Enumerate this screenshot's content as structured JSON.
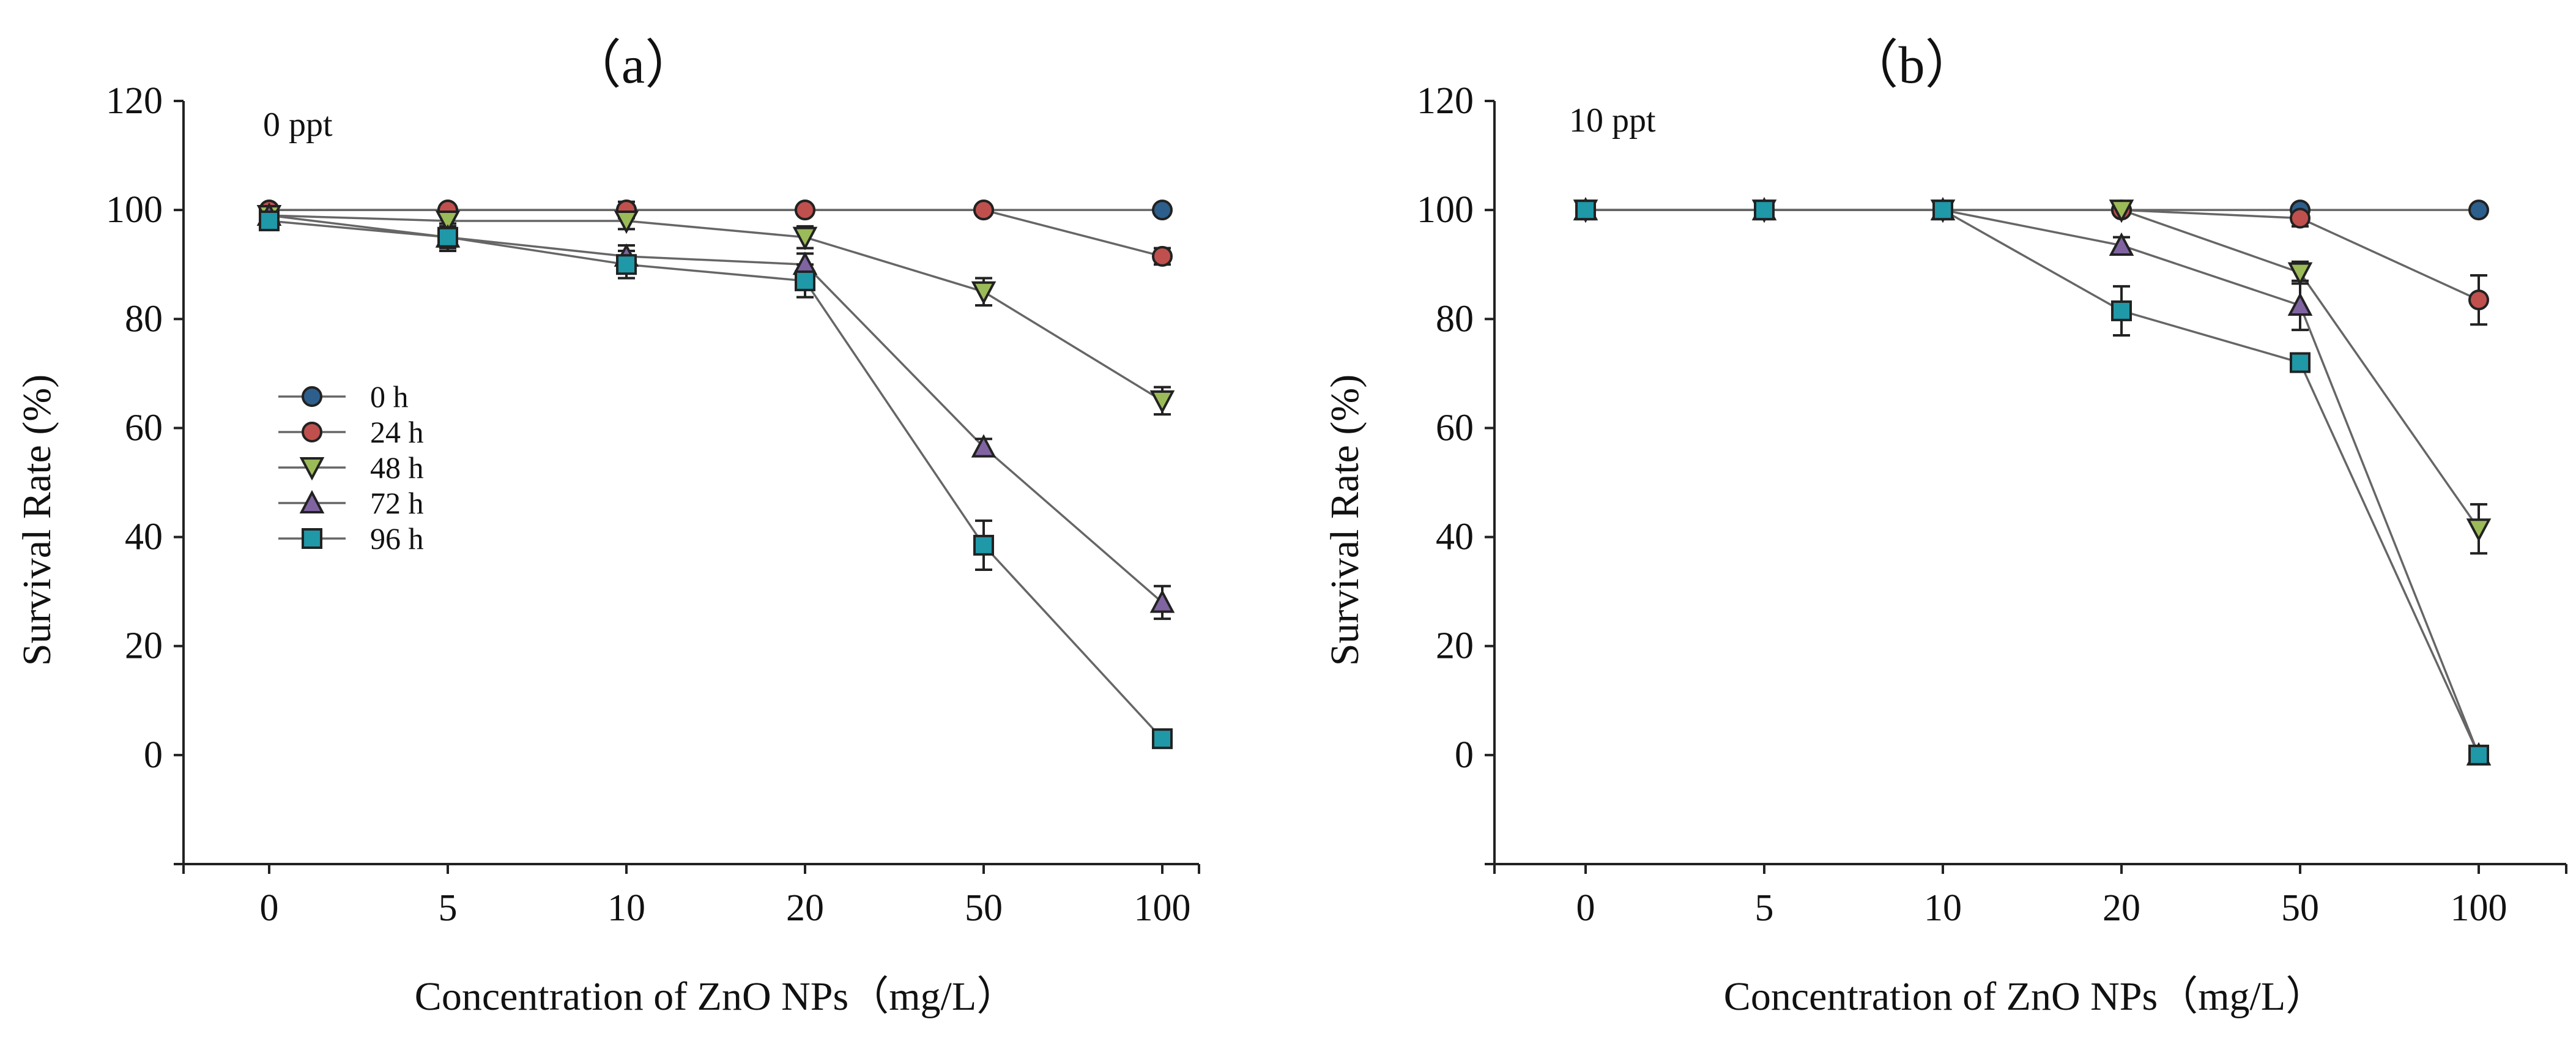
{
  "chart_data": [
    {
      "type": "line",
      "title": "（a）",
      "condition_label": "0 ppt",
      "xlabel": "Concentration of ZnO NPs（mg/L）",
      "ylabel": "Survival Rate (%)",
      "categories": [
        "0",
        "5",
        "10",
        "20",
        "50",
        "100"
      ],
      "ylim": [
        -20,
        120
      ],
      "yticks": [
        "0",
        "20",
        "40",
        "60",
        "80",
        "100",
        "120"
      ],
      "grid": false,
      "legend": "left-middle",
      "series": [
        {
          "name": "0 h",
          "marker": "circle",
          "color": "#2d5f8c",
          "values": [
            100,
            100,
            100,
            100,
            100,
            100
          ],
          "errors": [
            0,
            0,
            0,
            0,
            0,
            0
          ]
        },
        {
          "name": "24 h",
          "marker": "circle",
          "color": "#c0504d",
          "values": [
            100,
            100,
            100,
            100,
            100,
            91.5
          ],
          "errors": [
            0,
            0,
            1.5,
            0,
            0,
            1.5
          ]
        },
        {
          "name": "48 h",
          "marker": "triangle-down",
          "color": "#9bbb59",
          "values": [
            99,
            98,
            98,
            95,
            85,
            65
          ],
          "errors": [
            1,
            1,
            1.5,
            2,
            2.5,
            2.5
          ]
        },
        {
          "name": "72 h",
          "marker": "triangle-up",
          "color": "#8064a2",
          "values": [
            99,
            95,
            91.5,
            90,
            56.5,
            28
          ],
          "errors": [
            1,
            2,
            2,
            2,
            1.5,
            3
          ]
        },
        {
          "name": "96 h",
          "marker": "square",
          "color": "#1f98a8",
          "values": [
            98,
            95,
            90,
            87,
            38.5,
            3
          ],
          "errors": [
            1,
            2.5,
            2.5,
            3,
            4.5,
            1.5
          ]
        }
      ]
    },
    {
      "type": "line",
      "title": "（b）",
      "condition_label": "10 ppt",
      "xlabel": "Concentration of ZnO NPs（mg/L）",
      "ylabel": "Survival Rate (%)",
      "categories": [
        "0",
        "5",
        "10",
        "20",
        "50",
        "100"
      ],
      "ylim": [
        -20,
        120
      ],
      "yticks": [
        "0",
        "20",
        "40",
        "60",
        "80",
        "100",
        "120"
      ],
      "grid": false,
      "series": [
        {
          "name": "0 h",
          "marker": "circle",
          "color": "#2d5f8c",
          "values": [
            100,
            100,
            100,
            100,
            100,
            100
          ],
          "errors": [
            0,
            0,
            0,
            0,
            0,
            0
          ]
        },
        {
          "name": "24 h",
          "marker": "circle",
          "color": "#c0504d",
          "values": [
            100,
            100,
            100,
            100,
            98.5,
            83.5
          ],
          "errors": [
            0,
            0,
            0,
            0,
            1.5,
            4.5
          ]
        },
        {
          "name": "48 h",
          "marker": "triangle-down",
          "color": "#9bbb59",
          "values": [
            100,
            100,
            100,
            100,
            88.5,
            41.5
          ],
          "errors": [
            0,
            0,
            0,
            0,
            2,
            4.5
          ]
        },
        {
          "name": "72 h",
          "marker": "triangle-up",
          "color": "#8064a2",
          "values": [
            100,
            100,
            100,
            93.5,
            82.5,
            0
          ],
          "errors": [
            0,
            0,
            0,
            1.5,
            4.5,
            0
          ]
        },
        {
          "name": "96 h",
          "marker": "square",
          "color": "#1f98a8",
          "values": [
            100,
            100,
            100,
            81.5,
            72,
            0
          ],
          "errors": [
            0,
            0,
            0,
            4.5,
            1.5,
            0
          ]
        }
      ]
    }
  ]
}
